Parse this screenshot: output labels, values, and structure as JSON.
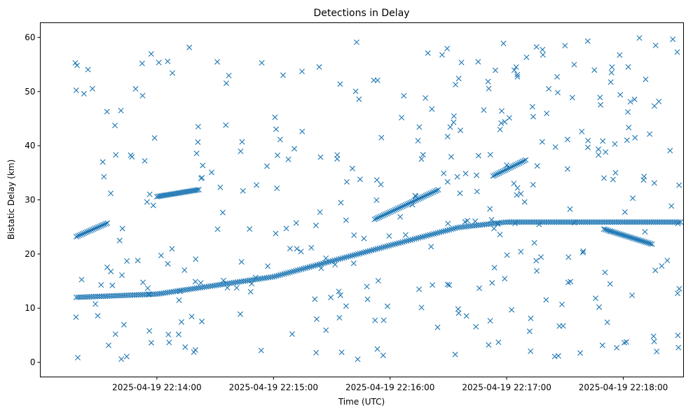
{
  "chart_data": {
    "type": "scatter",
    "title": "Detections in Delay",
    "xlabel": "Time (UTC)",
    "ylabel": "Bistatic Delay (km)",
    "marker": "x",
    "color": "#1f77b4",
    "grid": false,
    "legend": "none",
    "x_units": "seconds after 2025-04-19 22:13:00 UTC",
    "xlim": [
      0,
      331
    ],
    "ylim": [
      -2.7,
      62.7
    ],
    "x_ticks": [
      {
        "value": 60,
        "label": "2025-04-19 22:14:00"
      },
      {
        "value": 120,
        "label": "2025-04-19 22:15:00"
      },
      {
        "value": 180,
        "label": "2025-04-19 22:16:00"
      },
      {
        "value": 240,
        "label": "2025-04-19 22:17:00"
      },
      {
        "value": 300,
        "label": "2025-04-19 22:18:00"
      }
    ],
    "y_ticks": [
      {
        "value": 0,
        "label": "0"
      },
      {
        "value": 10,
        "label": "10"
      },
      {
        "value": 20,
        "label": "20"
      },
      {
        "value": 30,
        "label": "30"
      },
      {
        "value": 40,
        "label": "40"
      },
      {
        "value": 50,
        "label": "50"
      },
      {
        "value": 60,
        "label": "60"
      }
    ],
    "tracks": [
      {
        "name": "track-lower",
        "x_start": 18.5,
        "x_end": 330,
        "step": 1.0,
        "knots": [
          [
            18.5,
            12.0
          ],
          [
            60,
            12.6
          ],
          [
            120,
            15.8
          ],
          [
            180,
            21.6
          ],
          [
            215,
            24.9
          ],
          [
            240,
            25.9
          ]
        ]
      },
      {
        "name": "track-upper-1",
        "x_start": 18.5,
        "x_end": 35,
        "step": 0.8,
        "knots": [
          [
            18.5,
            23.2
          ],
          [
            35,
            25.8
          ]
        ]
      },
      {
        "name": "track-upper-2",
        "x_start": 60,
        "x_end": 82,
        "step": 0.8,
        "knots": [
          [
            60,
            30.6
          ],
          [
            82,
            31.9
          ]
        ]
      },
      {
        "name": "track-upper-3",
        "x_start": 172,
        "x_end": 205,
        "step": 0.8,
        "knots": [
          [
            172,
            26.4
          ],
          [
            205,
            31.9
          ]
        ]
      },
      {
        "name": "track-upper-4",
        "x_start": 233,
        "x_end": 250,
        "step": 0.8,
        "knots": [
          [
            233,
            34.4
          ],
          [
            250,
            37.4
          ]
        ]
      },
      {
        "name": "track-upper-5",
        "x_start": 290,
        "x_end": 315,
        "step": 0.8,
        "knots": [
          [
            290,
            24.6
          ],
          [
            315,
            21.8
          ]
        ]
      }
    ],
    "clutter": {
      "count": 360,
      "x_range": [
        18,
        330
      ],
      "y_range": [
        0.5,
        60
      ],
      "seed": 7
    }
  }
}
